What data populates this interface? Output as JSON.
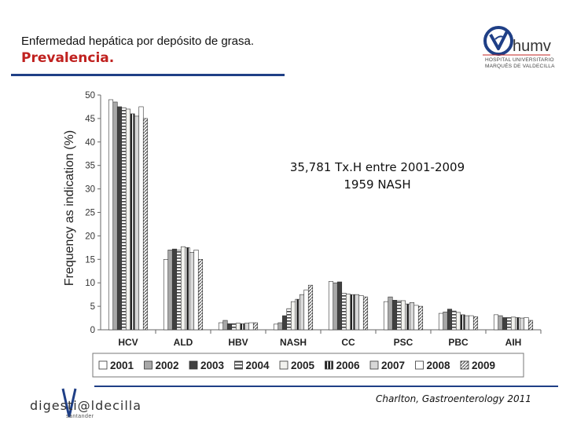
{
  "header": {
    "title": "Enfermedad hepática por depósito de grasa.",
    "subtitle": "Prevalencia."
  },
  "logo_top": {
    "name": "humv",
    "line1": "HOSPITAL UNIVERSITARIO",
    "line2": "MARQUÉS DE VALDECILLA"
  },
  "annotation": {
    "line1": "35,781 Tx.H entre 2001-2009",
    "line2": "1959 NASH"
  },
  "footer": {
    "brand": "digesti@ldecilla",
    "brand_sub": "santander",
    "citation": "Charlton, Gastroenterology 2011"
  },
  "colors": {
    "title_accent": "#c0211f",
    "rule": "#1f3f86"
  },
  "chart_data": {
    "type": "bar",
    "ylabel": "Frequency as indication (%)",
    "xlabel": "",
    "ylim": [
      0,
      50
    ],
    "yticks": [
      "0",
      "5",
      "10",
      "15",
      "20",
      "25",
      "30",
      "35",
      "40",
      "45",
      "50"
    ],
    "categories": [
      "HCV",
      "ALD",
      "HBV",
      "NASH",
      "CC",
      "PSC",
      "PBC",
      "AIH"
    ],
    "series": [
      {
        "name": "2001",
        "values": [
          49.0,
          15.0,
          1.5,
          1.2,
          10.3,
          6.0,
          3.5,
          3.2
        ]
      },
      {
        "name": "2002",
        "values": [
          48.5,
          17.0,
          2.0,
          1.5,
          10.0,
          7.0,
          3.8,
          3.0
        ]
      },
      {
        "name": "2003",
        "values": [
          47.5,
          17.2,
          1.3,
          3.0,
          10.2,
          6.3,
          4.4,
          2.6
        ]
      },
      {
        "name": "2004",
        "values": [
          47.3,
          17.0,
          1.3,
          4.5,
          7.8,
          6.2,
          4.0,
          2.6
        ]
      },
      {
        "name": "2005",
        "values": [
          47.0,
          17.7,
          1.4,
          6.0,
          7.6,
          6.2,
          3.7,
          2.7
        ]
      },
      {
        "name": "2006",
        "values": [
          46.0,
          17.5,
          1.3,
          6.5,
          7.5,
          5.5,
          3.2,
          2.6
        ]
      },
      {
        "name": "2007",
        "values": [
          45.5,
          16.5,
          1.4,
          7.5,
          7.5,
          5.8,
          3.0,
          2.5
        ]
      },
      {
        "name": "2008",
        "values": [
          47.5,
          17.0,
          1.5,
          8.5,
          7.3,
          5.2,
          3.0,
          2.6
        ]
      },
      {
        "name": "2009",
        "values": [
          45.0,
          15.0,
          1.5,
          9.5,
          7.0,
          5.0,
          2.8,
          2.0
        ]
      }
    ],
    "legend_position": "bottom"
  }
}
